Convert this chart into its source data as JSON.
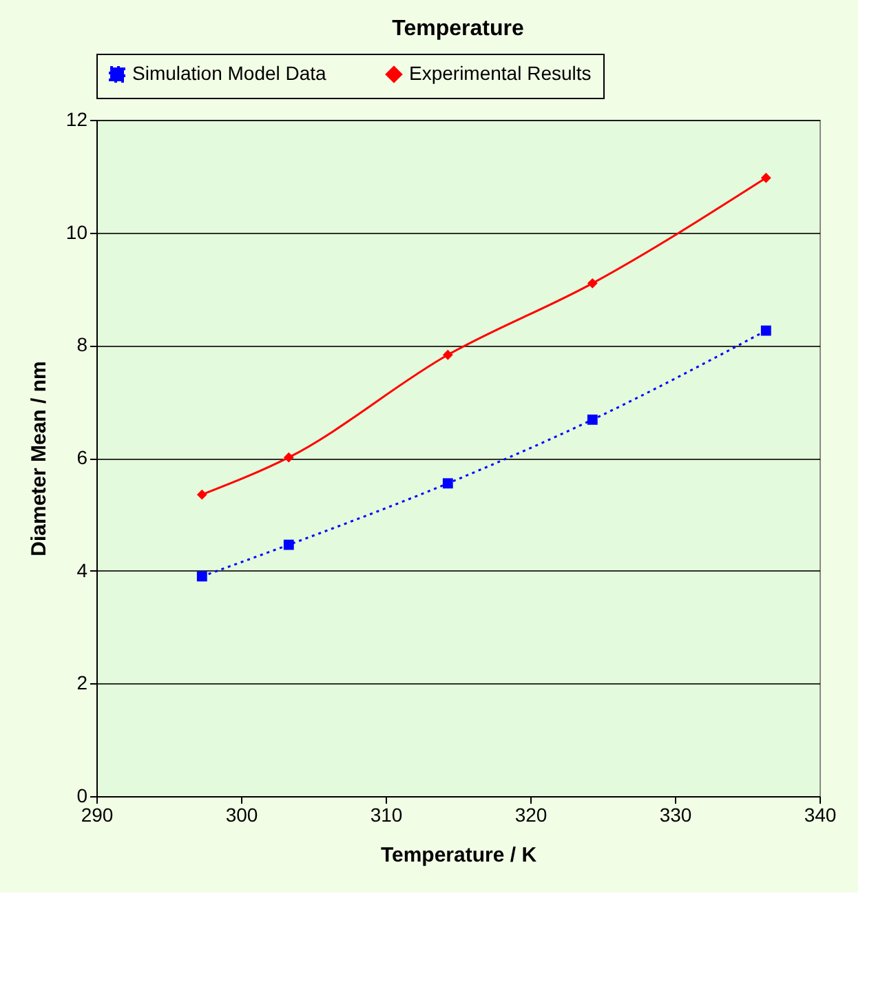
{
  "chart_data": {
    "type": "line",
    "title": "Temperature",
    "xlabel": "Temperature / K",
    "ylabel": "Diameter Mean / nm",
    "x": [
      297.3,
      303.3,
      314.3,
      324.3,
      336.3
    ],
    "series": [
      {
        "name": "Simulation Model Data",
        "color": "#0000ff",
        "values": [
          3.9,
          4.46,
          5.55,
          6.68,
          8.26
        ],
        "marker": "square",
        "line_style": "dotted"
      },
      {
        "name": "Experimental Results",
        "color": "#ff0000",
        "values": [
          5.35,
          6.01,
          7.83,
          9.1,
          10.97
        ],
        "marker": "diamond",
        "line_style": "solid"
      }
    ],
    "xlim": [
      290,
      340
    ],
    "xticks": [
      290,
      300,
      310,
      320,
      330,
      340
    ],
    "ylim": [
      0,
      12
    ],
    "yticks": [
      0,
      2,
      4,
      6,
      8,
      10,
      12
    ],
    "grid": "y",
    "legend": "top"
  }
}
